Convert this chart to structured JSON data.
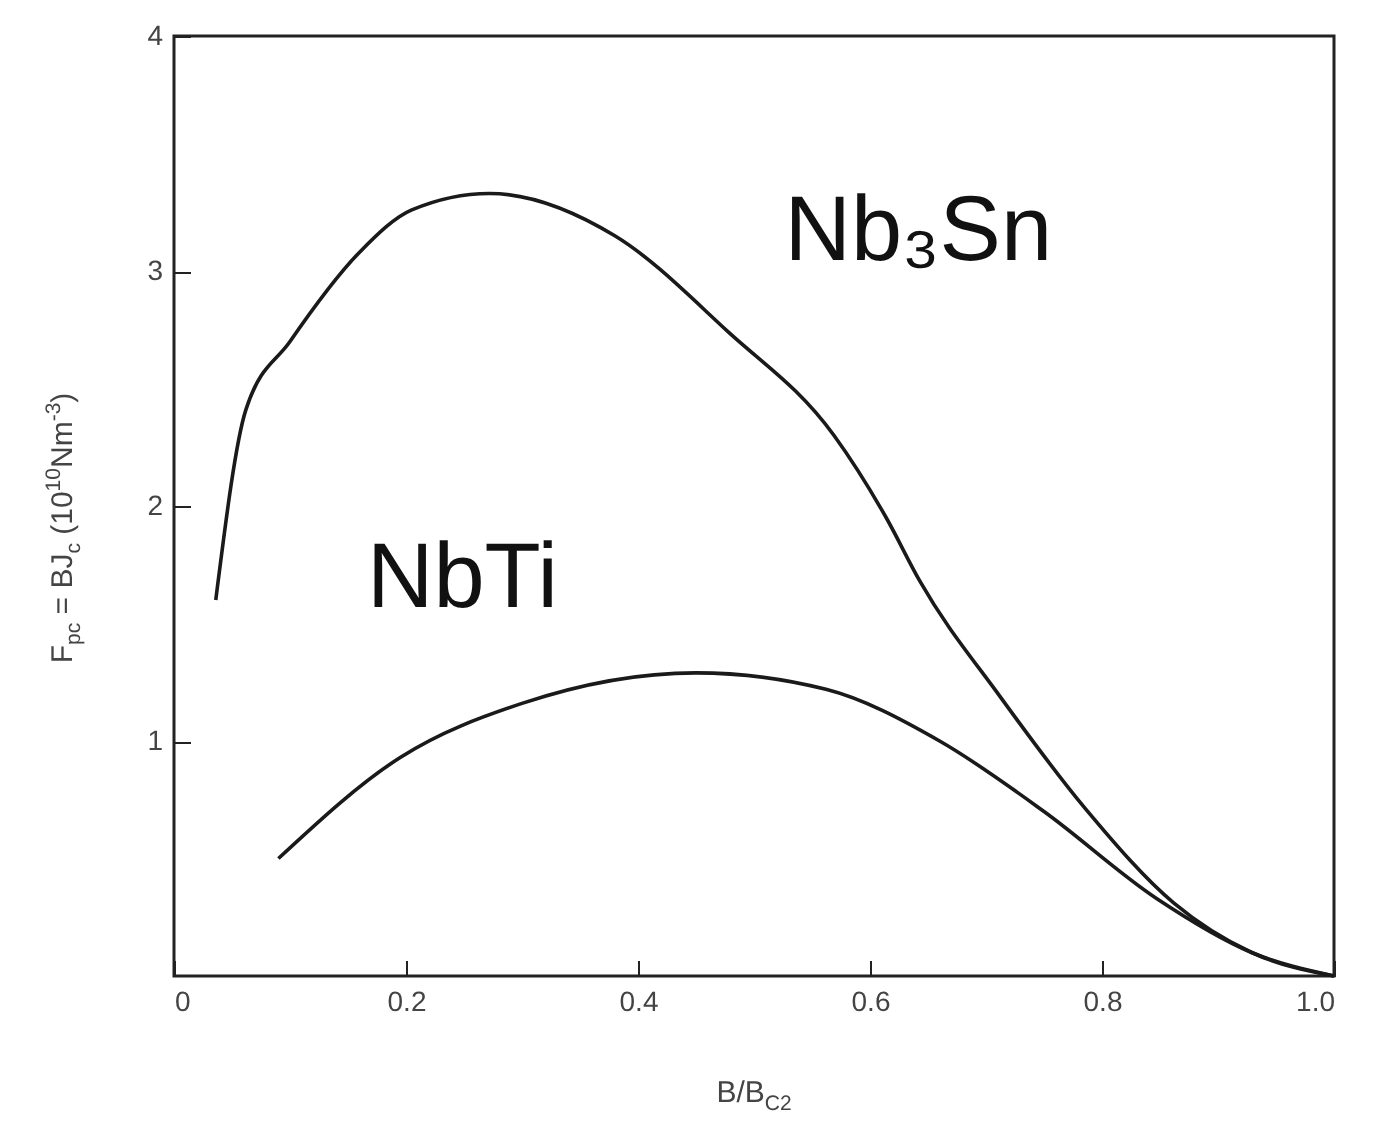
{
  "chart_data": {
    "type": "line",
    "xlabel": "B/B$_{C2}$",
    "ylabel": "F$_{pc}$ = BJ$_{c}$ (10$^{10}$Nm$^{-3}$)",
    "xlim": [
      0,
      1
    ],
    "ylim": [
      0,
      4
    ],
    "xticks": [
      0,
      0.2,
      0.4,
      0.6,
      0.8,
      {
        "value": 1,
        "label": "1.0"
      }
    ],
    "yticks": [
      1,
      2,
      3,
      4
    ],
    "grid": false,
    "marker": "none",
    "line_style": "solid",
    "series": [
      {
        "name": "Nb₃Sn",
        "color": "#1a1a1a",
        "x": [
          0.036,
          0.062,
          0.1,
          0.16,
          0.205,
          0.272,
          0.38,
          0.478,
          0.569,
          0.614,
          0.643,
          0.712,
          0.786,
          0.862,
          0.929,
          1.0
        ],
        "values": [
          1.6,
          2.41,
          2.7,
          3.08,
          3.26,
          3.33,
          3.15,
          2.74,
          2.3,
          1.95,
          1.68,
          1.19,
          0.71,
          0.31,
          0.1,
          0
        ]
      },
      {
        "name": "NbTi",
        "color": "#1a1a1a",
        "x": [
          0.09,
          0.195,
          0.3,
          0.45,
          0.562,
          0.66,
          0.75,
          0.847,
          0.929,
          1.0
        ],
        "values": [
          0.5,
          0.93,
          1.16,
          1.29,
          1.22,
          1.0,
          0.7,
          0.33,
          0.1,
          0
        ]
      }
    ]
  }
}
